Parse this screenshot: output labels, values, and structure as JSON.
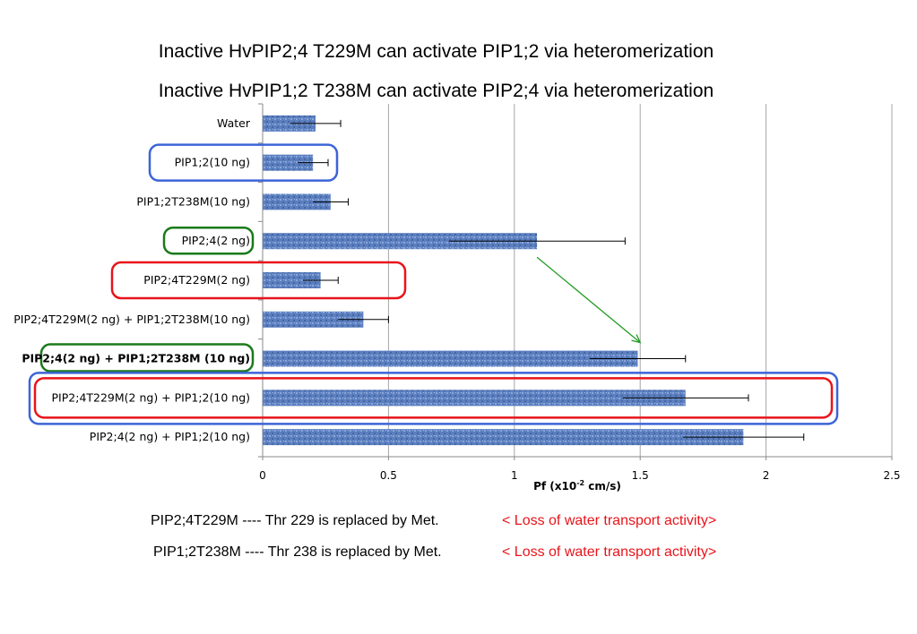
{
  "titles": [
    "Inactive HvPIP2;4 T229M  can activate PIP1;2 via heteromerization",
    "Inactive HvPIP1;2 T238M  can activate PIP2;4 via heteromerization"
  ],
  "chart_data": {
    "type": "bar",
    "orientation": "horizontal",
    "categories": [
      "Water",
      "PIP1;2(10 ng)",
      "PIP1;2T238M(10 ng)",
      "PIP2;4(2 ng)",
      "PIP2;4T229M(2 ng)",
      "PIP2;4T229M(2 ng) + PIP1;2T238M(10 ng)",
      "PIP2;4(2 ng) + PIP1;2T238M (10 ng)",
      "PIP2;4T229M(2 ng) + PIP1;2(10 ng)",
      "PIP2;4(2 ng) + PIP1;2(10 ng)"
    ],
    "values": [
      0.21,
      0.2,
      0.27,
      1.09,
      0.23,
      0.4,
      1.49,
      1.68,
      1.91
    ],
    "errors": [
      0.1,
      0.06,
      0.07,
      0.35,
      0.07,
      0.1,
      0.19,
      0.25,
      0.24
    ],
    "xlabel": "Pf (x10",
    "xlabel_sup": "-2",
    "xlabel_unit": " cm/s)",
    "xlim": [
      0,
      2.5
    ],
    "xticks": [
      "0",
      "0.5",
      "1",
      "1.5",
      "2",
      "2.5"
    ],
    "grid": "vertical",
    "bar_color": "#5b7fc0",
    "highlight_boxes": [
      {
        "categories": [
          1,
          1
        ],
        "color": "#3c64d8",
        "label_only": true
      },
      {
        "categories": [
          3,
          3
        ],
        "color": "#1a7a1a",
        "label_only": true
      },
      {
        "categories": [
          4,
          4
        ],
        "color": "#e8141a",
        "label_only": true
      },
      {
        "categories": [
          6,
          6
        ],
        "color": "#1a7a1a",
        "label_only": true
      },
      {
        "categories": [
          7,
          7
        ],
        "color": "#e8141a",
        "label_only": false
      },
      {
        "categories": [
          7,
          7
        ],
        "color": "#3c64d8",
        "label_only": false,
        "outer": true
      }
    ],
    "arrow": {
      "from_category": 3,
      "to_category": 6,
      "color": "#239b23"
    }
  },
  "notes": [
    {
      "left": "PIP2;4T229M ---- Thr 229 is replaced by Met.",
      "right": "< Loss of water transport activity>"
    },
    {
      "left": "PIP1;2T238M ---- Thr 238 is replaced by Met.",
      "right": "< Loss of water transport activity>"
    }
  ],
  "colors": {
    "accent_red": "#e8141a",
    "accent_green": "#1a7a1a",
    "accent_blue": "#3c64d8"
  }
}
